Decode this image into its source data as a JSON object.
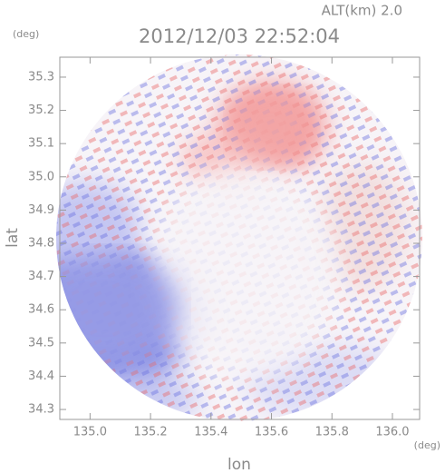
{
  "chart_data": {
    "type": "heatmap",
    "title": "2012/12/03 22:52:04",
    "subtitle": "ALT(km) 2.0",
    "x_label": "lon",
    "x_unit": "(deg)",
    "y_label": "lat",
    "y_unit": "(deg)",
    "xlim": [
      134.9,
      136.09
    ],
    "ylim": [
      34.27,
      35.36
    ],
    "xticks": [
      {
        "value": 135.0,
        "label": "135.0"
      },
      135.2,
      135.4,
      135.6,
      135.8,
      {
        "value": 136.0,
        "label": "136.0"
      }
    ],
    "yticks": [
      34.3,
      34.4,
      34.5,
      34.6,
      34.7,
      34.8,
      34.9,
      {
        "value": 35.0,
        "label": "35.0"
      },
      35.1,
      35.2,
      35.3
    ]
  }
}
